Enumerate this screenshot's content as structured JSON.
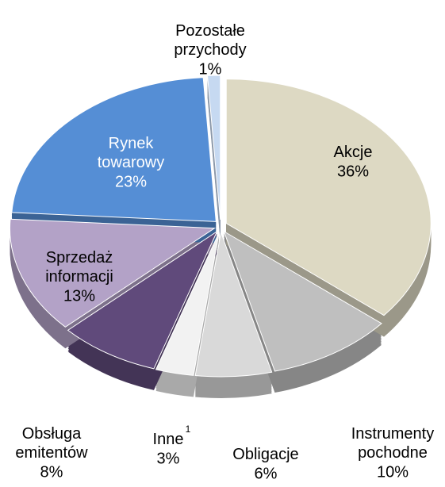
{
  "chart_data": {
    "type": "pie",
    "categories": [
      "Akcje",
      "Instrumenty pochodne",
      "Obligacje",
      "Inne",
      "Obsługa emitentów",
      "Sprzedaż informacji",
      "Rynek towarowy",
      "Pozostałe przychody"
    ],
    "values": [
      36,
      10,
      6,
      3,
      8,
      13,
      23,
      1
    ],
    "value_labels": [
      "36%",
      "10%",
      "6%",
      "3%",
      "8%",
      "13%",
      "23%",
      "1%"
    ],
    "colors": [
      "#ddd9c3",
      "#bfbfbf",
      "#d9d9d9",
      "#f2f2f2",
      "#604a7b",
      "#b3a2c7",
      "#558ed5",
      "#c6d9f1"
    ],
    "annotation": "1"
  }
}
